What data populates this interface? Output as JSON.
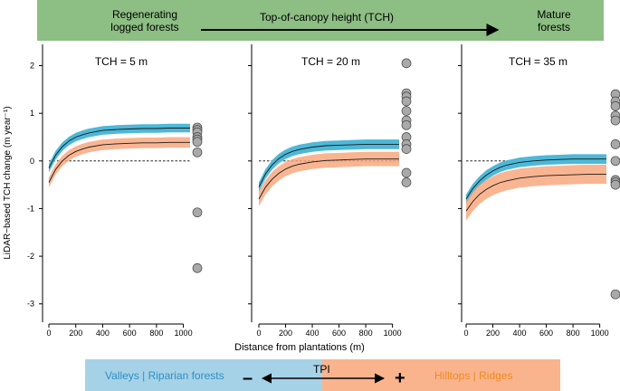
{
  "banner": {
    "left_label": "Regenerating logged forests",
    "left_line1": "Regenerating",
    "left_line2": "logged forests",
    "center_label": "Top-of-canopy height (TCH)",
    "right_label": "Mature forests",
    "right_line1": "Mature",
    "right_line2": "forests",
    "color": "#8dbe83"
  },
  "tpi_bar": {
    "left_label": "Valleys | Riparian forests",
    "center_label": "TPI",
    "minus": "–",
    "plus": "+",
    "right_label": "Hilltops | Ridges",
    "left_color": "#a6d2e7",
    "right_color": "#f9b48e",
    "left_text_color": "#2f8fc8",
    "right_text_color": "#f08a1c"
  },
  "chart_data": {
    "type": "line",
    "shared_ylabel": "LiDAR−based TCH change (m year⁻¹)",
    "shared_xlabel": "Distance from plantations (m)",
    "ylim": [
      -3.1,
      2.2
    ],
    "yticks": [
      -3,
      -2,
      -1,
      0,
      1,
      2
    ],
    "xlim": [
      0,
      1050
    ],
    "xticks": [
      0,
      200,
      400,
      600,
      800,
      1000
    ],
    "x": [
      0,
      50,
      100,
      150,
      200,
      250,
      300,
      400,
      500,
      600,
      700,
      800,
      900,
      1000,
      1050
    ],
    "reference_line_y": 0,
    "series_colors": {
      "Valleys": "#4db8d8",
      "Hilltops": "#f8a57a",
      "line": "#1a1a1a",
      "points": "#a9a9a9"
    },
    "panels": [
      {
        "title": "TCH = 5 m",
        "series": [
          {
            "name": "Valleys",
            "values": [
              -0.15,
              0.12,
              0.3,
              0.42,
              0.5,
              0.55,
              0.59,
              0.64,
              0.66,
              0.67,
              0.68,
              0.68,
              0.69,
              0.69,
              0.69
            ],
            "band": 0.09
          },
          {
            "name": "Hilltops",
            "values": [
              -0.45,
              -0.18,
              0.0,
              0.12,
              0.2,
              0.25,
              0.29,
              0.34,
              0.36,
              0.37,
              0.38,
              0.38,
              0.39,
              0.39,
              0.39
            ],
            "band": 0.11
          }
        ],
        "points": [
          0.7,
          0.65,
          0.6,
          0.5,
          0.45,
          0.4,
          0.18,
          -1.08,
          -2.25
        ]
      },
      {
        "title": "TCH = 20 m",
        "series": [
          {
            "name": "Valleys",
            "values": [
              -0.55,
              -0.27,
              -0.08,
              0.05,
              0.14,
              0.2,
              0.24,
              0.29,
              0.32,
              0.33,
              0.34,
              0.35,
              0.35,
              0.35,
              0.35
            ],
            "band": 0.1
          },
          {
            "name": "Hilltops",
            "values": [
              -0.8,
              -0.55,
              -0.38,
              -0.26,
              -0.17,
              -0.11,
              -0.07,
              -0.02,
              0.01,
              0.02,
              0.03,
              0.04,
              0.04,
              0.04,
              0.04
            ],
            "band": 0.15
          }
        ],
        "points": [
          2.05,
          1.42,
          1.35,
          1.25,
          1.05,
          0.85,
          0.75,
          0.5,
          0.35,
          0.25,
          -0.25,
          -0.45
        ]
      },
      {
        "title": "TCH = 35 m",
        "series": [
          {
            "name": "Valleys",
            "values": [
              -0.8,
              -0.58,
              -0.42,
              -0.3,
              -0.21,
              -0.14,
              -0.09,
              -0.03,
              0.0,
              0.02,
              0.03,
              0.04,
              0.04,
              0.04,
              0.04
            ],
            "band": 0.1
          },
          {
            "name": "Hilltops",
            "values": [
              -1.05,
              -0.85,
              -0.7,
              -0.6,
              -0.52,
              -0.46,
              -0.42,
              -0.36,
              -0.33,
              -0.31,
              -0.3,
              -0.29,
              -0.28,
              -0.28,
              -0.28
            ],
            "band": 0.2
          }
        ],
        "points": [
          1.4,
          1.25,
          1.15,
          0.95,
          0.85,
          0.35,
          0.0,
          -0.4,
          -0.45,
          -0.5,
          -2.8
        ]
      }
    ]
  }
}
